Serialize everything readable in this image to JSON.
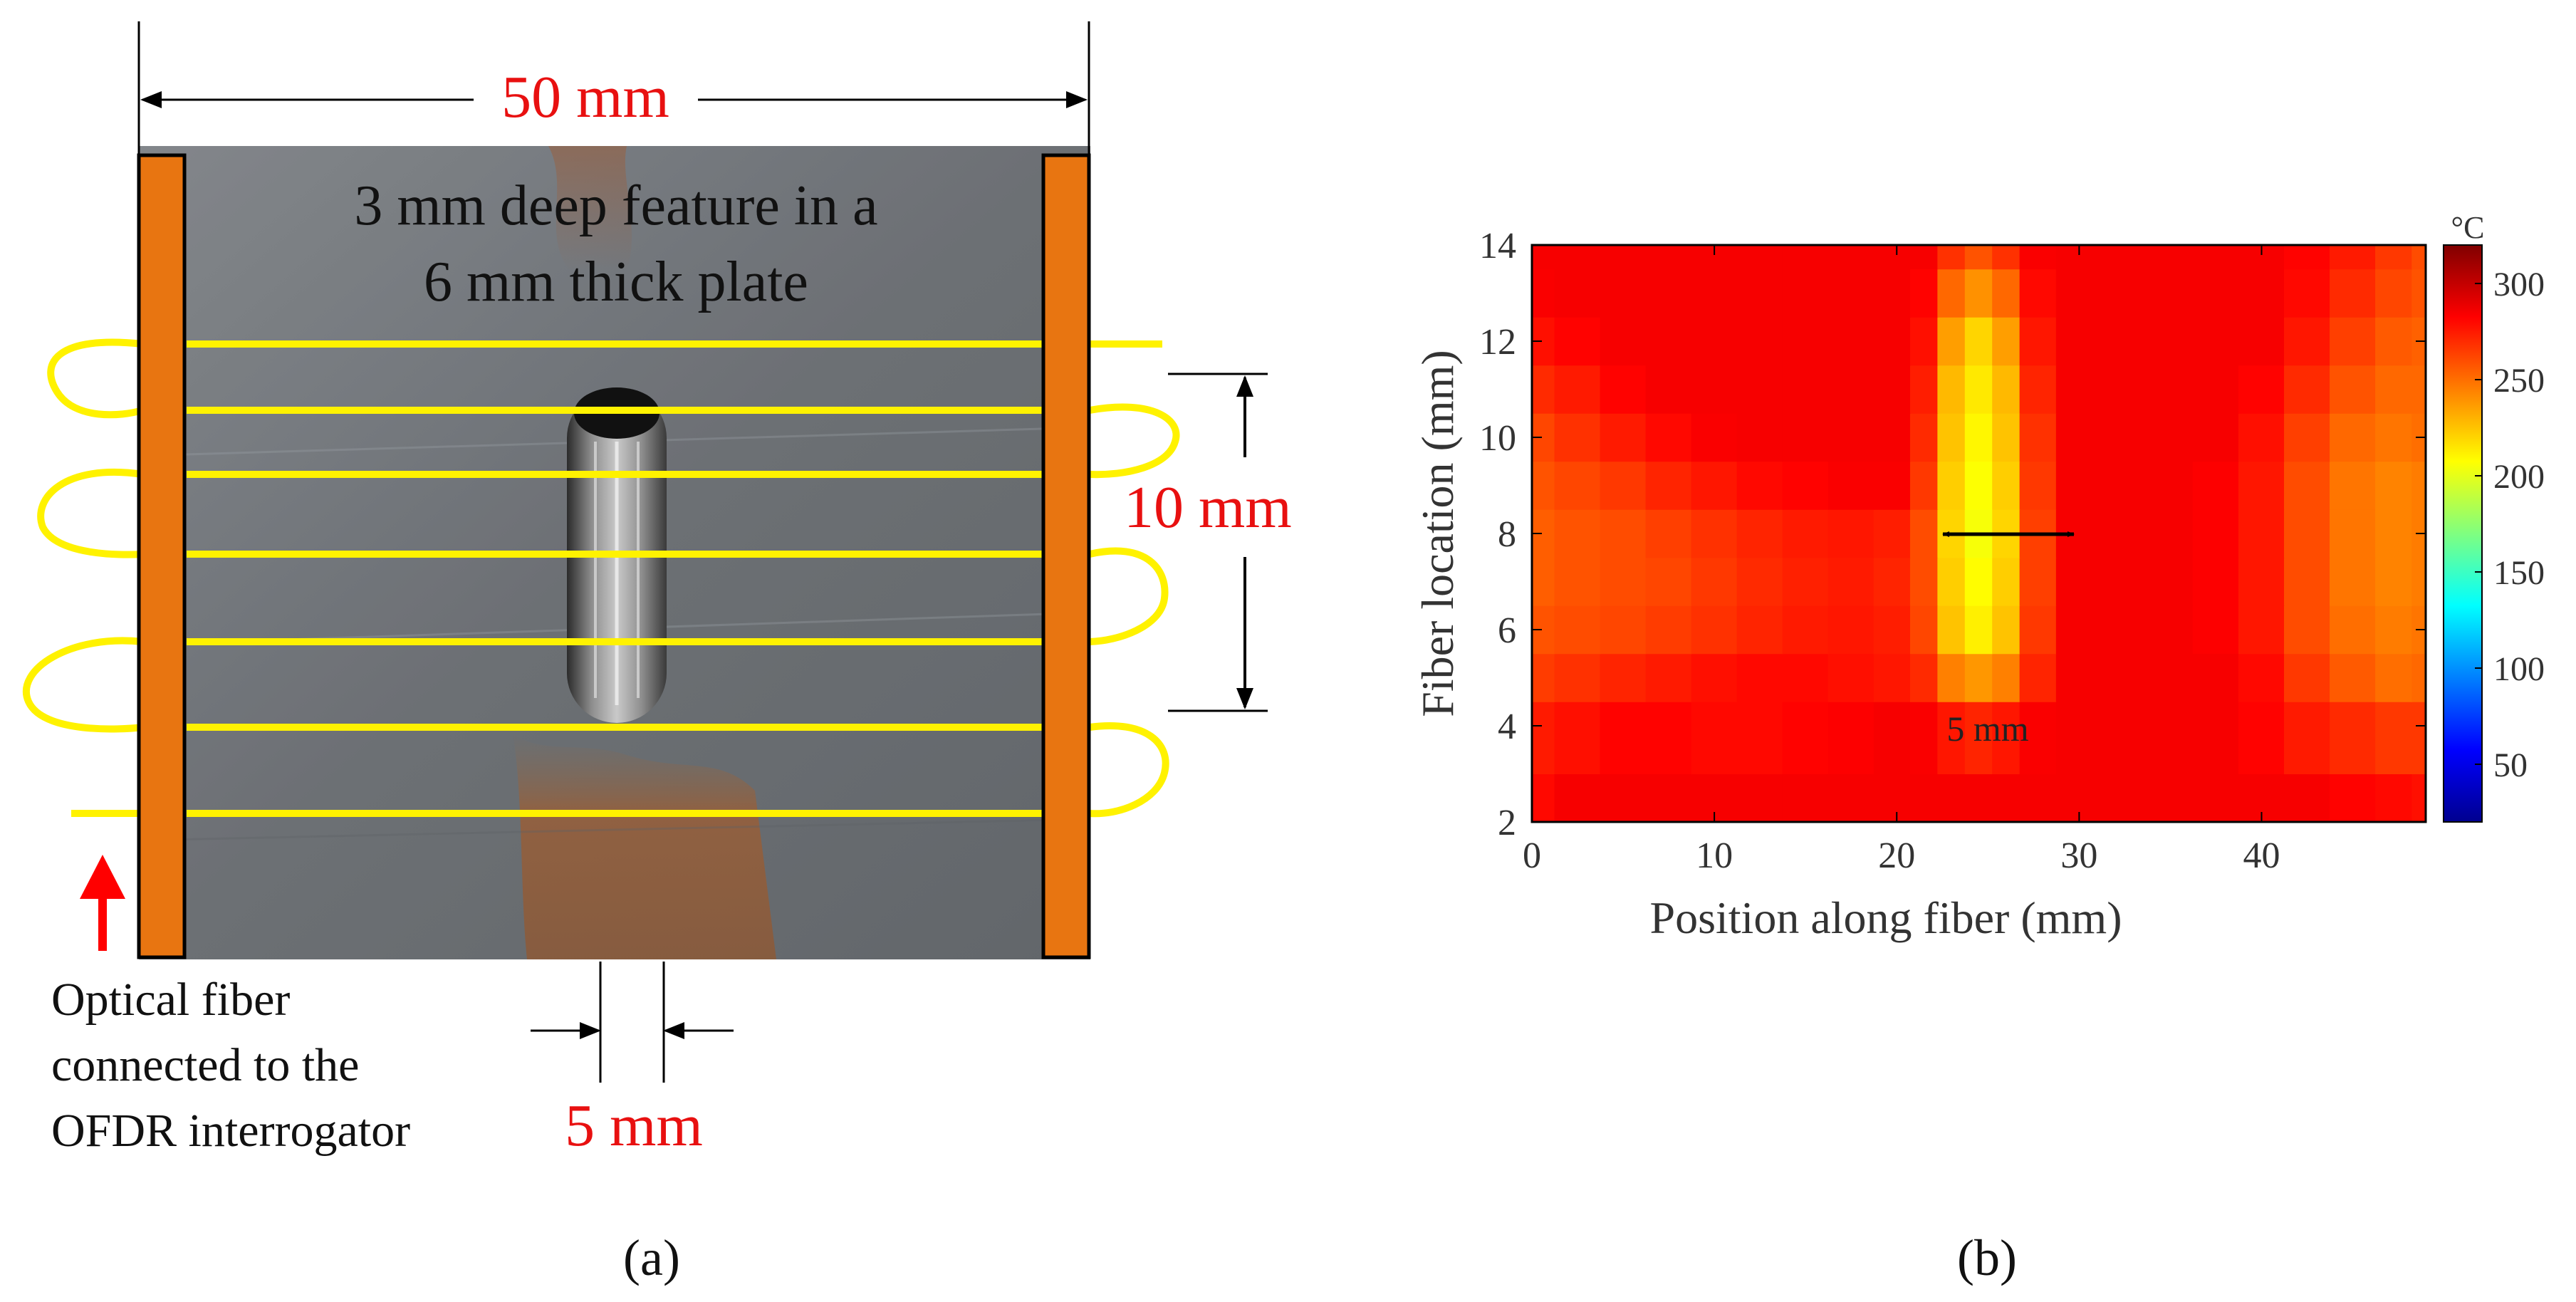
{
  "panel_a": {
    "width_label": "50 mm",
    "feature_line1": "3 mm deep feature in a",
    "feature_line2": "6 mm thick plate",
    "span_label": "10 mm",
    "notch_label": "5 mm",
    "fiber_note_line1": "Optical fiber",
    "fiber_note_line2": "connected to the",
    "fiber_note_line3": "OFDR interrogator",
    "caption": "(a)",
    "colors": {
      "clamp": "#E87511",
      "fiber": "#FFF200",
      "dimension_text": "#E81010",
      "arrow": "#FF0000",
      "plate": "#7A7E83"
    }
  },
  "panel_b": {
    "caption": "(b)",
    "colorbar_unit": "°C",
    "width_marker_label": "5 mm"
  },
  "chart_data": {
    "type": "heatmap",
    "title": "",
    "xlabel": "Position along fiber (mm)",
    "ylabel": "Fiber location (mm)",
    "xlim": [
      0,
      49
    ],
    "ylim": [
      2,
      14
    ],
    "xticks": [
      0,
      10,
      20,
      30,
      40
    ],
    "yticks": [
      2,
      4,
      6,
      8,
      10,
      12,
      14
    ],
    "colorbar": {
      "label": "°C",
      "range": [
        20,
        320
      ],
      "ticks": [
        50,
        100,
        150,
        200,
        250,
        300
      ],
      "colormap": "jet"
    },
    "x": [
      0,
      2.5,
      5,
      7.5,
      10,
      12.5,
      15,
      17.5,
      20,
      21.5,
      23,
      24.5,
      26,
      27.5,
      30,
      32.5,
      35,
      37.5,
      40,
      42.5,
      45,
      47.5,
      49
    ],
    "y": [
      2,
      4,
      5,
      6,
      7,
      8,
      9,
      10,
      11,
      12,
      13,
      14
    ],
    "z": [
      [
        280,
        285,
        285,
        285,
        285,
        285,
        285,
        285,
        285,
        285,
        285,
        285,
        285,
        285,
        285,
        285,
        285,
        285,
        285,
        285,
        282,
        280,
        278
      ],
      [
        275,
        278,
        282,
        282,
        280,
        280,
        282,
        283,
        285,
        284,
        276,
        272,
        276,
        284,
        285,
        285,
        285,
        285,
        282,
        275,
        270,
        266,
        266
      ],
      [
        265,
        268,
        272,
        275,
        278,
        280,
        280,
        278,
        276,
        270,
        245,
        238,
        245,
        272,
        285,
        285,
        285,
        285,
        280,
        266,
        256,
        250,
        252
      ],
      [
        258,
        260,
        262,
        265,
        268,
        272,
        275,
        276,
        274,
        262,
        225,
        212,
        225,
        266,
        285,
        285,
        285,
        283,
        276,
        260,
        250,
        246,
        248
      ],
      [
        255,
        258,
        260,
        262,
        266,
        270,
        273,
        275,
        272,
        260,
        222,
        208,
        222,
        264,
        285,
        285,
        285,
        283,
        276,
        260,
        248,
        244,
        246
      ],
      [
        255,
        258,
        260,
        264,
        268,
        272,
        275,
        276,
        274,
        260,
        220,
        205,
        220,
        264,
        285,
        285,
        285,
        283,
        276,
        260,
        248,
        244,
        246
      ],
      [
        258,
        262,
        266,
        272,
        276,
        280,
        282,
        284,
        284,
        266,
        222,
        207,
        222,
        266,
        285,
        285,
        285,
        283,
        276,
        260,
        248,
        244,
        246
      ],
      [
        262,
        268,
        275,
        280,
        284,
        285,
        285,
        285,
        285,
        270,
        225,
        210,
        225,
        268,
        285,
        285,
        285,
        285,
        278,
        264,
        252,
        248,
        250
      ],
      [
        270,
        275,
        282,
        285,
        285,
        285,
        285,
        285,
        285,
        274,
        228,
        214,
        228,
        272,
        285,
        285,
        285,
        285,
        282,
        270,
        258,
        252,
        252
      ],
      [
        278,
        282,
        285,
        285,
        285,
        285,
        285,
        285,
        285,
        278,
        236,
        220,
        236,
        276,
        285,
        285,
        285,
        285,
        285,
        276,
        264,
        256,
        254
      ],
      [
        284,
        285,
        285,
        285,
        285,
        285,
        285,
        285,
        285,
        282,
        252,
        240,
        252,
        280,
        285,
        285,
        285,
        285,
        285,
        280,
        270,
        262,
        258
      ],
      [
        285,
        285,
        285,
        285,
        285,
        285,
        285,
        285,
        285,
        285,
        268,
        258,
        268,
        284,
        285,
        285,
        285,
        285,
        285,
        282,
        275,
        266,
        260
      ]
    ]
  }
}
